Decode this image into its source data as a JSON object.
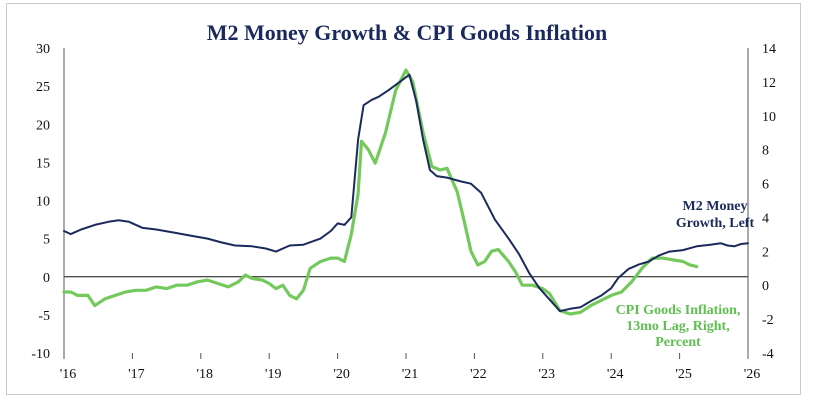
{
  "chart_data": {
    "type": "line",
    "title": "M2 Money Growth & CPI Goods Inflation",
    "x_ticks": [
      "'16",
      "'17",
      "'18",
      "'19",
      "'20",
      "'21",
      "'22",
      "'23",
      "'24",
      "'25",
      "'26"
    ],
    "x_range": [
      2016.0,
      2026.0
    ],
    "y_left": {
      "range": [
        -10,
        30
      ],
      "ticks": [
        "30",
        "25",
        "20",
        "15",
        "10",
        "5",
        "0",
        "-5",
        "-10"
      ]
    },
    "y_right": {
      "range": [
        -4,
        14
      ],
      "ticks": [
        "14",
        "12",
        "10",
        "8",
        "6",
        "4",
        "2",
        "0",
        "-2",
        "-4"
      ]
    },
    "series": [
      {
        "name": "M2 Money Growth, Left",
        "axis": "left",
        "color": "#1b2a5c",
        "label_lines": [
          "M2 Money",
          "Growth, Left"
        ],
        "points": [
          [
            2016.0,
            6.0
          ],
          [
            2016.1,
            5.6
          ],
          [
            2016.25,
            6.2
          ],
          [
            2016.45,
            6.8
          ],
          [
            2016.65,
            7.2
          ],
          [
            2016.8,
            7.4
          ],
          [
            2016.95,
            7.2
          ],
          [
            2017.15,
            6.4
          ],
          [
            2017.35,
            6.2
          ],
          [
            2017.6,
            5.8
          ],
          [
            2017.85,
            5.4
          ],
          [
            2018.1,
            5.0
          ],
          [
            2018.3,
            4.5
          ],
          [
            2018.5,
            4.1
          ],
          [
            2018.75,
            4.0
          ],
          [
            2018.95,
            3.7
          ],
          [
            2019.1,
            3.3
          ],
          [
            2019.3,
            4.1
          ],
          [
            2019.5,
            4.2
          ],
          [
            2019.75,
            5.0
          ],
          [
            2019.9,
            6.0
          ],
          [
            2020.0,
            7.0
          ],
          [
            2020.1,
            6.8
          ],
          [
            2020.2,
            7.8
          ],
          [
            2020.3,
            18.0
          ],
          [
            2020.38,
            22.5
          ],
          [
            2020.5,
            23.2
          ],
          [
            2020.6,
            23.6
          ],
          [
            2020.75,
            24.5
          ],
          [
            2020.9,
            25.5
          ],
          [
            2021.05,
            26.5
          ],
          [
            2021.15,
            23.0
          ],
          [
            2021.25,
            18.0
          ],
          [
            2021.35,
            14.0
          ],
          [
            2021.45,
            13.2
          ],
          [
            2021.6,
            13.0
          ],
          [
            2021.8,
            12.5
          ],
          [
            2021.95,
            12.2
          ],
          [
            2022.1,
            11.0
          ],
          [
            2022.3,
            7.5
          ],
          [
            2022.5,
            5.0
          ],
          [
            2022.65,
            3.0
          ],
          [
            2022.8,
            0.5
          ],
          [
            2022.95,
            -1.5
          ],
          [
            2023.1,
            -3.0
          ],
          [
            2023.25,
            -4.5
          ],
          [
            2023.4,
            -4.2
          ],
          [
            2023.55,
            -4.0
          ],
          [
            2023.7,
            -3.2
          ],
          [
            2023.85,
            -2.5
          ],
          [
            2024.0,
            -1.5
          ],
          [
            2024.1,
            -0.2
          ],
          [
            2024.25,
            1.0
          ],
          [
            2024.4,
            1.6
          ],
          [
            2024.55,
            2.0
          ],
          [
            2024.7,
            2.8
          ],
          [
            2024.85,
            3.3
          ],
          [
            2025.05,
            3.5
          ],
          [
            2025.25,
            4.0
          ],
          [
            2025.45,
            4.2
          ],
          [
            2025.6,
            4.4
          ],
          [
            2025.7,
            4.1
          ],
          [
            2025.8,
            4.0
          ],
          [
            2025.9,
            4.3
          ],
          [
            2026.0,
            4.4
          ]
        ]
      },
      {
        "name": "CPI Goods Inflation, 13mo Lag, Right, Percent",
        "axis": "right",
        "color": "#74c95c",
        "label_lines": [
          "CPI Goods Inflation,",
          "13mo Lag, Right,",
          "Percent"
        ],
        "points": [
          [
            2016.0,
            -0.4
          ],
          [
            2016.1,
            -0.4
          ],
          [
            2016.2,
            -0.6
          ],
          [
            2016.35,
            -0.6
          ],
          [
            2016.45,
            -1.2
          ],
          [
            2016.6,
            -0.8
          ],
          [
            2016.75,
            -0.6
          ],
          [
            2016.9,
            -0.4
          ],
          [
            2017.05,
            -0.3
          ],
          [
            2017.2,
            -0.3
          ],
          [
            2017.35,
            -0.1
          ],
          [
            2017.5,
            -0.2
          ],
          [
            2017.65,
            0.0
          ],
          [
            2017.8,
            0.0
          ],
          [
            2017.95,
            0.2
          ],
          [
            2018.1,
            0.3
          ],
          [
            2018.25,
            0.1
          ],
          [
            2018.4,
            -0.1
          ],
          [
            2018.55,
            0.2
          ],
          [
            2018.65,
            0.6
          ],
          [
            2018.75,
            0.4
          ],
          [
            2018.9,
            0.3
          ],
          [
            2019.0,
            0.1
          ],
          [
            2019.1,
            -0.2
          ],
          [
            2019.2,
            0.0
          ],
          [
            2019.3,
            -0.6
          ],
          [
            2019.4,
            -0.8
          ],
          [
            2019.5,
            -0.3
          ],
          [
            2019.6,
            1.0
          ],
          [
            2019.75,
            1.4
          ],
          [
            2019.9,
            1.6
          ],
          [
            2020.0,
            1.6
          ],
          [
            2020.1,
            1.4
          ],
          [
            2020.2,
            3.0
          ],
          [
            2020.3,
            5.4
          ],
          [
            2020.35,
            8.5
          ],
          [
            2020.45,
            8.0
          ],
          [
            2020.55,
            7.2
          ],
          [
            2020.7,
            9.0
          ],
          [
            2020.85,
            11.5
          ],
          [
            2021.0,
            12.7
          ],
          [
            2021.1,
            12.0
          ],
          [
            2021.25,
            9.0
          ],
          [
            2021.38,
            7.0
          ],
          [
            2021.5,
            6.8
          ],
          [
            2021.6,
            6.9
          ],
          [
            2021.75,
            5.5
          ],
          [
            2021.85,
            3.8
          ],
          [
            2021.95,
            2.0
          ],
          [
            2022.05,
            1.2
          ],
          [
            2022.15,
            1.4
          ],
          [
            2022.25,
            2.0
          ],
          [
            2022.35,
            2.1
          ],
          [
            2022.5,
            1.4
          ],
          [
            2022.6,
            0.8
          ],
          [
            2022.7,
            0.0
          ],
          [
            2022.85,
            0.0
          ],
          [
            2023.0,
            -0.2
          ],
          [
            2023.1,
            -0.5
          ],
          [
            2023.25,
            -1.5
          ],
          [
            2023.4,
            -1.7
          ],
          [
            2023.55,
            -1.6
          ],
          [
            2023.7,
            -1.2
          ],
          [
            2023.85,
            -0.9
          ],
          [
            2024.0,
            -0.6
          ],
          [
            2024.15,
            -0.4
          ],
          [
            2024.3,
            0.2
          ],
          [
            2024.45,
            1.0
          ],
          [
            2024.6,
            1.6
          ],
          [
            2024.75,
            1.6
          ],
          [
            2024.9,
            1.5
          ],
          [
            2025.05,
            1.4
          ],
          [
            2025.15,
            1.2
          ],
          [
            2025.25,
            1.1
          ]
        ]
      }
    ]
  }
}
